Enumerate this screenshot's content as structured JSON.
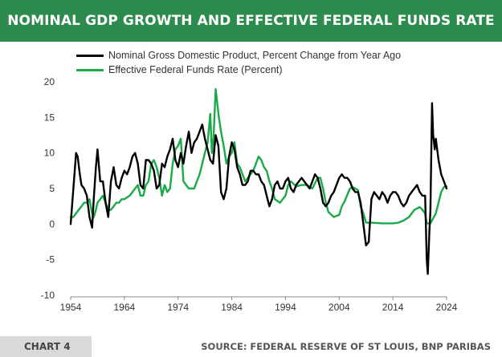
{
  "header": {
    "title": "NOMINAL GDP GROWTH AND EFFECTIVE FEDERAL FUNDS RATE"
  },
  "footer": {
    "chart_label": "CHART 4",
    "source": "SOURCE: FEDERAL RESERVE OF ST LOUIS, BNP PARIBAS"
  },
  "colors": {
    "header_bg": "#2e8b4e",
    "gdp": "#000000",
    "ffr": "#1aaa48",
    "negative_tick": "#cc0000"
  },
  "chart_data": {
    "type": "line",
    "title": "NOMINAL GDP GROWTH AND EFFECTIVE FEDERAL FUNDS RATE",
    "xlabel": "",
    "ylabel": "",
    "xlim": [
      1954,
      2024
    ],
    "ylim": [
      -10,
      20
    ],
    "x_ticks": [
      "1954",
      "1964",
      "1974",
      "1984",
      "1994",
      "2004",
      "2014",
      "2024"
    ],
    "y_ticks": [
      "20",
      "15",
      "10",
      "5",
      "0",
      "-5",
      "-10"
    ],
    "legend_position": "top-left",
    "series": [
      {
        "name": "Nominal Gross Domestic Product, Percent Change from Year Ago",
        "color": "#000000",
        "x": [
          1954.0,
          1954.3,
          1954.7,
          1955.0,
          1955.3,
          1955.7,
          1956.0,
          1956.5,
          1957.0,
          1957.5,
          1958.0,
          1958.3,
          1958.7,
          1959.0,
          1959.5,
          1960.0,
          1960.5,
          1961.0,
          1961.5,
          1962.0,
          1962.5,
          1963.0,
          1963.5,
          1964.0,
          1964.5,
          1965.0,
          1965.5,
          1966.0,
          1966.5,
          1967.0,
          1967.5,
          1968.0,
          1968.5,
          1969.0,
          1969.5,
          1970.0,
          1970.5,
          1971.0,
          1971.5,
          1972.0,
          1972.5,
          1973.0,
          1973.5,
          1974.0,
          1974.5,
          1975.0,
          1975.5,
          1976.0,
          1976.5,
          1977.0,
          1977.5,
          1978.0,
          1978.5,
          1979.0,
          1979.5,
          1980.0,
          1980.5,
          1981.0,
          1981.5,
          1982.0,
          1982.5,
          1983.0,
          1983.5,
          1984.0,
          1984.5,
          1985.0,
          1985.5,
          1986.0,
          1986.5,
          1987.0,
          1987.5,
          1988.0,
          1988.5,
          1989.0,
          1989.5,
          1990.0,
          1990.5,
          1991.0,
          1991.5,
          1992.0,
          1992.5,
          1993.0,
          1993.5,
          1994.0,
          1994.5,
          1995.0,
          1995.5,
          1996.0,
          1996.5,
          1997.0,
          1997.5,
          1998.0,
          1998.5,
          1999.0,
          1999.5,
          2000.0,
          2000.5,
          2001.0,
          2001.5,
          2002.0,
          2002.5,
          2003.0,
          2003.5,
          2004.0,
          2004.5,
          2005.0,
          2005.5,
          2006.0,
          2006.5,
          2007.0,
          2007.5,
          2008.0,
          2008.5,
          2009.0,
          2009.5,
          2010.0,
          2010.5,
          2011.0,
          2011.5,
          2012.0,
          2012.5,
          2013.0,
          2013.5,
          2014.0,
          2014.5,
          2015.0,
          2015.5,
          2016.0,
          2016.5,
          2017.0,
          2017.5,
          2018.0,
          2018.5,
          2019.0,
          2019.5,
          2020.0,
          2020.3,
          2020.5,
          2020.8,
          2021.0,
          2021.3,
          2021.5,
          2021.8,
          2022.0,
          2022.5,
          2023.0,
          2023.5,
          2024.0
        ],
        "values": [
          0.0,
          3.0,
          7.0,
          10.0,
          9.5,
          7.0,
          5.5,
          5.0,
          4.0,
          1.0,
          -0.5,
          3.5,
          8.0,
          10.5,
          6.0,
          6.0,
          3.0,
          1.0,
          6.0,
          8.0,
          5.5,
          5.0,
          6.5,
          7.5,
          7.0,
          8.0,
          9.5,
          10.0,
          8.5,
          5.5,
          5.0,
          9.0,
          9.0,
          8.5,
          7.5,
          5.0,
          5.5,
          8.5,
          8.0,
          9.5,
          10.5,
          12.0,
          9.0,
          8.0,
          10.0,
          8.5,
          11.0,
          13.0,
          10.0,
          11.5,
          12.0,
          13.0,
          14.0,
          12.0,
          10.5,
          9.0,
          8.5,
          12.5,
          11.0,
          4.5,
          3.5,
          5.0,
          9.5,
          11.5,
          10.5,
          8.0,
          7.0,
          5.5,
          5.5,
          6.0,
          7.5,
          7.5,
          7.0,
          7.0,
          6.0,
          5.5,
          4.0,
          2.5,
          3.5,
          5.5,
          6.0,
          5.0,
          5.0,
          6.0,
          6.5,
          5.0,
          4.5,
          5.5,
          6.0,
          6.5,
          6.0,
          5.5,
          5.0,
          6.0,
          7.0,
          6.5,
          5.0,
          3.0,
          2.5,
          3.0,
          4.0,
          4.5,
          5.5,
          6.5,
          7.0,
          6.5,
          6.5,
          6.0,
          5.0,
          4.5,
          4.5,
          3.0,
          0.0,
          -3.0,
          -2.5,
          3.5,
          4.5,
          4.0,
          3.5,
          4.5,
          4.0,
          3.0,
          4.0,
          4.5,
          4.5,
          4.0,
          3.0,
          2.5,
          3.0,
          4.0,
          4.5,
          5.0,
          5.5,
          4.5,
          4.0,
          4.0,
          -5.0,
          -7.0,
          -1.0,
          2.0,
          17.0,
          12.5,
          10.5,
          12.0,
          9.0,
          7.0,
          6.0,
          5.0
        ]
      },
      {
        "name": "Effective Federal Funds Rate (Percent)",
        "color": "#1aaa48",
        "x": [
          1954.0,
          1954.5,
          1955.0,
          1955.5,
          1956.0,
          1956.5,
          1957.0,
          1957.5,
          1958.0,
          1958.3,
          1958.7,
          1959.0,
          1959.5,
          1960.0,
          1960.5,
          1961.0,
          1961.5,
          1962.0,
          1962.5,
          1963.0,
          1963.5,
          1964.0,
          1965.0,
          1966.0,
          1966.5,
          1967.0,
          1967.5,
          1968.0,
          1968.5,
          1969.0,
          1969.5,
          1970.0,
          1970.5,
          1971.0,
          1971.5,
          1972.0,
          1972.5,
          1973.0,
          1973.5,
          1974.0,
          1974.5,
          1975.0,
          1975.5,
          1976.0,
          1976.5,
          1977.0,
          1977.5,
          1978.0,
          1978.5,
          1979.0,
          1979.5,
          1980.0,
          1980.3,
          1980.6,
          1981.0,
          1981.3,
          1981.6,
          1982.0,
          1982.5,
          1983.0,
          1983.5,
          1984.0,
          1984.5,
          1985.0,
          1985.5,
          1986.0,
          1986.5,
          1987.0,
          1988.0,
          1989.0,
          1989.5,
          1990.0,
          1990.5,
          1991.0,
          1991.5,
          1992.0,
          1993.0,
          1994.0,
          1994.5,
          1995.0,
          1996.0,
          1997.0,
          1998.0,
          1999.0,
          2000.0,
          2000.5,
          2001.0,
          2001.5,
          2002.0,
          2003.0,
          2004.0,
          2004.5,
          2005.0,
          2006.0,
          2006.5,
          2007.0,
          2007.5,
          2008.0,
          2008.5,
          2009.0,
          2010.0,
          2012.0,
          2014.0,
          2015.0,
          2016.0,
          2017.0,
          2018.0,
          2019.0,
          2019.5,
          2020.0,
          2020.3,
          2021.0,
          2022.0,
          2022.5,
          2023.0,
          2023.5,
          2024.0
        ],
        "values": [
          1.0,
          1.0,
          1.5,
          2.0,
          2.5,
          3.0,
          3.0,
          3.5,
          1.5,
          1.0,
          2.0,
          3.0,
          3.5,
          4.0,
          3.0,
          2.0,
          2.0,
          2.5,
          3.0,
          3.0,
          3.5,
          3.5,
          4.0,
          5.0,
          5.5,
          4.0,
          4.0,
          5.5,
          6.0,
          8.5,
          9.0,
          8.0,
          6.5,
          4.0,
          5.5,
          4.5,
          5.0,
          8.5,
          10.5,
          11.0,
          12.0,
          6.0,
          5.5,
          5.0,
          5.0,
          5.0,
          6.0,
          7.0,
          8.5,
          10.0,
          11.5,
          15.5,
          10.0,
          12.0,
          19.0,
          17.0,
          15.0,
          13.0,
          11.0,
          8.5,
          9.5,
          10.0,
          11.5,
          8.5,
          8.0,
          7.0,
          6.0,
          6.5,
          7.5,
          9.5,
          9.0,
          8.0,
          7.5,
          6.0,
          5.0,
          3.5,
          3.0,
          4.0,
          5.5,
          6.0,
          5.3,
          5.5,
          5.5,
          5.0,
          6.5,
          6.5,
          5.0,
          3.0,
          1.7,
          1.0,
          1.3,
          2.5,
          3.2,
          5.0,
          5.2,
          5.0,
          4.8,
          2.5,
          1.5,
          0.2,
          0.2,
          0.1,
          0.1,
          0.2,
          0.5,
          1.0,
          2.0,
          2.4,
          2.0,
          1.5,
          0.1,
          0.1,
          1.5,
          3.0,
          4.5,
          5.2,
          5.3
        ]
      }
    ]
  }
}
